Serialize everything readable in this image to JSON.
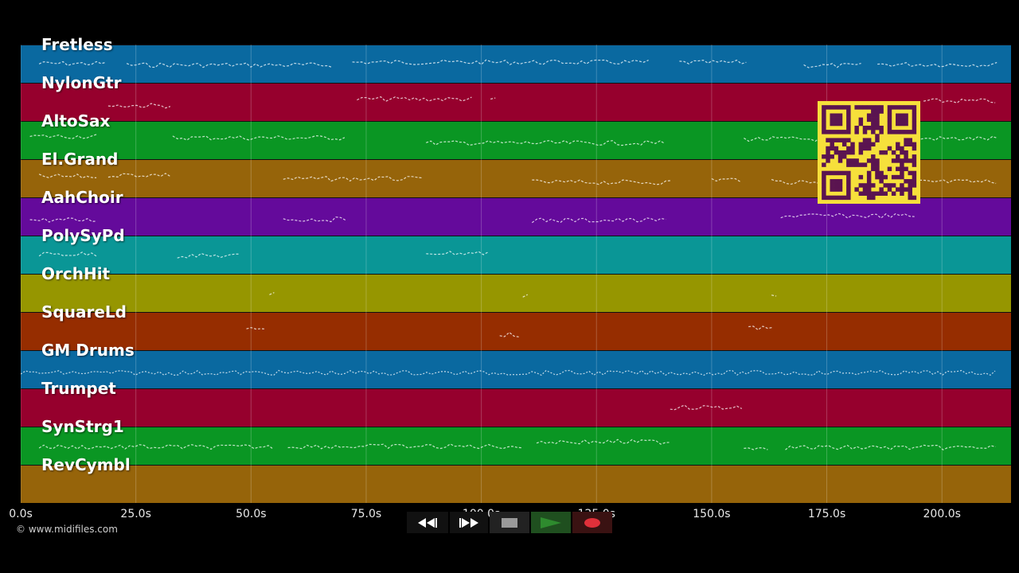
{
  "tracks": [
    {
      "label": "Fretless",
      "color": "#0a69a0"
    },
    {
      "label": "NylonGtr",
      "color": "#96002d"
    },
    {
      "label": "AltoSax",
      "color": "#0a9623"
    },
    {
      "label": "El.Grand",
      "color": "#96640a"
    },
    {
      "label": "AahChoir",
      "color": "#640a9b"
    },
    {
      "label": "PolySyPd",
      "color": "#0a9696"
    },
    {
      "label": "OrchHit",
      "color": "#969600"
    },
    {
      "label": "SquareLd",
      "color": "#962d00"
    },
    {
      "label": "GM Drums",
      "color": "#0a69a0"
    },
    {
      "label": "Trumpet",
      "color": "#96002d"
    },
    {
      "label": "SynStrg1",
      "color": "#0a9623"
    },
    {
      "label": "RevCymbl",
      "color": "#96640a"
    }
  ],
  "timeline": {
    "ticks": [
      "0.0s",
      "25.0s",
      "50.0s",
      "75.0s",
      "100.0s",
      "125.0s",
      "150.0s",
      "175.0s",
      "200.0s"
    ],
    "tick_values": [
      0,
      25,
      50,
      75,
      100,
      125,
      150,
      175,
      200
    ],
    "max_seconds": 215
  },
  "copyright": "© www.midifiles.com",
  "transport": {
    "rewind": "rewind-icon",
    "forward": "fast-forward-icon",
    "stop": "stop-icon",
    "play": "play-icon",
    "record": "record-icon",
    "play_color": "#2e8b2e",
    "record_color": "#e0303a"
  },
  "qr_code": {
    "background": "#f6e03b",
    "foreground": "#5a1450"
  }
}
